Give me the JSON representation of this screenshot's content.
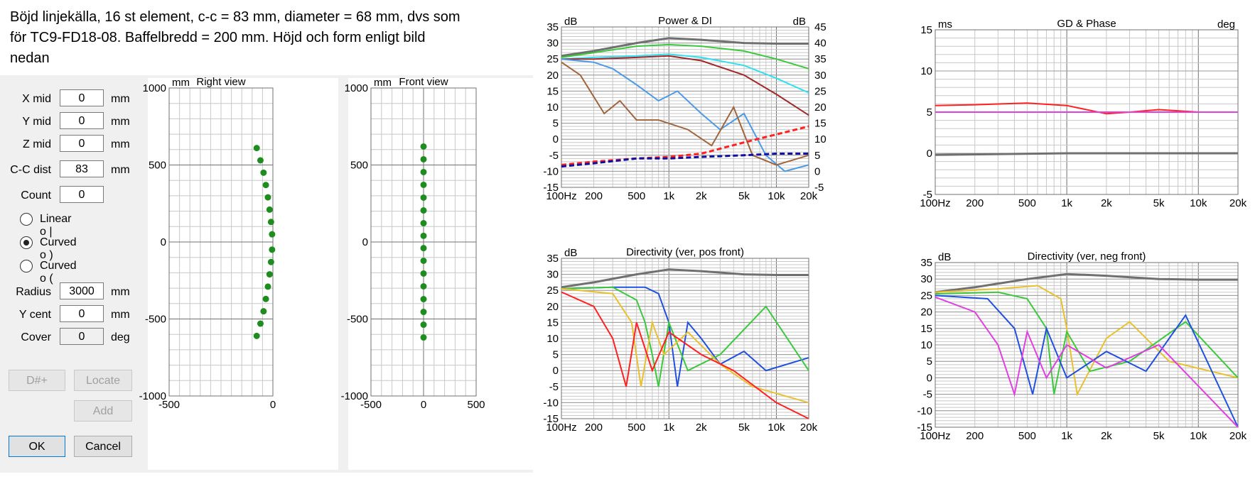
{
  "caption": {
    "line1": "Böjd linjekälla, 16 st element, c-c = 83 mm, diameter = 68 mm, dvs som",
    "line2": "för TC9-FD18-08. Baffelbredd = 200 mm.  Höjd och form enligt bild",
    "line3": "nedan"
  },
  "form": {
    "x_mid": {
      "label": "X mid",
      "value": "0",
      "unit": "mm"
    },
    "y_mid": {
      "label": "Y mid",
      "value": "0",
      "unit": "mm"
    },
    "z_mid": {
      "label": "Z mid",
      "value": "0",
      "unit": "mm"
    },
    "cc_dist": {
      "label": "C-C dist",
      "value": "83",
      "unit": "mm"
    },
    "count": {
      "label": "Count",
      "value": "0"
    },
    "radio_linear": {
      "label": "Linear   o  |",
      "selected": false
    },
    "radio_curved1": {
      "label": "Curved   o  )",
      "selected": true
    },
    "radio_curved2": {
      "label": "Curved   o  (",
      "selected": false
    },
    "radius": {
      "label": "Radius",
      "value": "3000",
      "unit": "mm"
    },
    "y_cent": {
      "label": "Y cent",
      "value": "0",
      "unit": "mm"
    },
    "cover": {
      "label": "Cover",
      "value": "0",
      "unit": "deg"
    },
    "btn_d": "D#+",
    "btn_locate": "Locate",
    "btn_add": "Add",
    "btn_ok": "OK",
    "btn_cancel": "Cancel"
  },
  "colors": {
    "grid": "#c8c8c8",
    "gridMajor": "#707070",
    "dot": "#1e8c1e",
    "gray": "#707070",
    "green": "#3cc83c",
    "cyan": "#30e0f0",
    "darkred": "#a02828",
    "lightblue": "#4a9ae8",
    "brown": "#a0643c",
    "red": "#ff2020",
    "navy": "#1010a0",
    "magenta": "#e040e0",
    "yellow": "#e8c030",
    "blue": "#2050e0"
  },
  "chart_data": [
    {
      "type": "scatter",
      "title": "Right view",
      "ylabel": "mm",
      "xlim": [
        -500,
        0
      ],
      "ylim": [
        -1000,
        1000
      ],
      "xticks": [
        "-500",
        "0"
      ],
      "yticks": [
        "1000",
        "500",
        "0",
        "-500",
        "-1000"
      ],
      "x": [
        -78,
        -60,
        -45,
        -34,
        -24,
        -16,
        -9,
        -4,
        -4,
        -9,
        -16,
        -24,
        -34,
        -45,
        -60,
        -78
      ],
      "y": [
        610,
        530,
        450,
        370,
        290,
        210,
        130,
        50,
        -50,
        -130,
        -210,
        -290,
        -370,
        -450,
        -530,
        -610
      ]
    },
    {
      "type": "scatter",
      "title": "Front view",
      "ylabel": "mm",
      "xlim": [
        -500,
        500
      ],
      "ylim": [
        -1000,
        1000
      ],
      "xticks": [
        "-500",
        "0",
        "500"
      ],
      "yticks": [
        "1000",
        "500",
        "0",
        "-500",
        "-1000"
      ],
      "x": [
        0,
        0,
        0,
        0,
        0,
        0,
        0,
        0,
        0,
        0,
        0,
        0,
        0,
        0,
        0,
        0
      ],
      "y": [
        620,
        537,
        454,
        371,
        288,
        205,
        122,
        40,
        -40,
        -122,
        -205,
        -288,
        -371,
        -454,
        -537,
        -620
      ]
    },
    {
      "type": "line",
      "title": "Power & DI",
      "ylabel": "dB",
      "y2label": "dB",
      "xscale": "log",
      "xlim": [
        100,
        20000
      ],
      "ylim": [
        -15,
        35
      ],
      "y2lim": [
        -5,
        45
      ],
      "xticks": [
        "100Hz",
        "200",
        "500",
        "1k",
        "2k",
        "5k",
        "10k",
        "20k"
      ],
      "yticks": [
        "35",
        "30",
        "25",
        "20",
        "15",
        "10",
        "5",
        "0",
        "-5",
        "-10",
        "-15"
      ],
      "y2ticks": [
        "45",
        "40",
        "35",
        "30",
        "25",
        "20",
        "15",
        "10",
        "5",
        "0",
        "-5"
      ],
      "series": [
        {
          "color": "gray",
          "x": [
            100,
            200,
            500,
            1000,
            2000,
            5000,
            10000,
            20000
          ],
          "y": [
            26,
            27.5,
            30,
            31.5,
            31,
            30,
            29.8,
            29.8
          ]
        },
        {
          "color": "green",
          "x": [
            100,
            200,
            500,
            1000,
            2000,
            5000,
            10000,
            20000
          ],
          "y": [
            25.5,
            27,
            29,
            29.5,
            29,
            27.5,
            25,
            22
          ]
        },
        {
          "color": "cyan",
          "x": [
            100,
            200,
            500,
            1000,
            2000,
            5000,
            10000,
            20000
          ],
          "y": [
            25,
            25.5,
            26,
            26.5,
            25.5,
            23,
            19,
            14.5
          ]
        },
        {
          "color": "darkred",
          "x": [
            100,
            200,
            500,
            1000,
            2000,
            5000,
            10000,
            20000
          ],
          "y": [
            25,
            25,
            25.5,
            26,
            24.5,
            20,
            14,
            7.5
          ]
        },
        {
          "color": "lightblue",
          "x": [
            100,
            200,
            300,
            500,
            800,
            1200,
            2000,
            3000,
            5000,
            8000,
            12000,
            20000
          ],
          "y": [
            25,
            24,
            22,
            17,
            12,
            15,
            8,
            3,
            8,
            -5,
            -10,
            -8
          ]
        },
        {
          "color": "brown",
          "x": [
            100,
            150,
            250,
            350,
            500,
            800,
            1500,
            2500,
            4000,
            6000,
            10000,
            20000
          ],
          "y": [
            24,
            20,
            8,
            12,
            6,
            6,
            3,
            -2,
            10,
            -5,
            -8,
            -5
          ]
        },
        {
          "color": "red",
          "dash": true,
          "x": [
            100,
            200,
            500,
            1000,
            2000,
            5000,
            10000,
            20000
          ],
          "y": [
            -8,
            -7,
            -6,
            -5.5,
            -4.5,
            -1,
            1.5,
            4
          ]
        },
        {
          "color": "navy",
          "dash": true,
          "x": [
            100,
            200,
            500,
            1000,
            2000,
            5000,
            10000,
            20000
          ],
          "y": [
            -8.5,
            -7.5,
            -6,
            -6,
            -5.5,
            -5,
            -4.5,
            -4.5
          ]
        }
      ]
    },
    {
      "type": "line",
      "title": "GD & Phase",
      "ylabel": "ms",
      "y2label": "deg",
      "xscale": "log",
      "xlim": [
        100,
        20000
      ],
      "ylim": [
        -5,
        15
      ],
      "xticks": [
        "100Hz",
        "200",
        "500",
        "1k",
        "2k",
        "5k",
        "10k",
        "20k"
      ],
      "yticks": [
        "15",
        "10",
        "5",
        "0",
        "-5"
      ],
      "series": [
        {
          "color": "red",
          "x": [
            100,
            200,
            500,
            1000,
            2000,
            3000,
            5000,
            10000,
            20000
          ],
          "y": [
            5.8,
            5.9,
            6.1,
            5.8,
            4.8,
            5.0,
            5.3,
            5.0,
            5.0
          ]
        },
        {
          "color": "magenta",
          "x": [
            100,
            20000
          ],
          "y": [
            5.0,
            5.0
          ]
        },
        {
          "color": "gray",
          "x": [
            100,
            1000,
            20000
          ],
          "y": [
            -0.2,
            0.0,
            0.0
          ]
        }
      ]
    },
    {
      "type": "line",
      "title": "Directivity (ver, pos front)",
      "ylabel": "dB",
      "xscale": "log",
      "xlim": [
        100,
        20000
      ],
      "ylim": [
        -15,
        35
      ],
      "xticks": [
        "100Hz",
        "200",
        "500",
        "1k",
        "2k",
        "5k",
        "10k",
        "20k"
      ],
      "yticks": [
        "35",
        "30",
        "25",
        "20",
        "15",
        "10",
        "5",
        "0",
        "-5",
        "-10",
        "-15"
      ],
      "series": [
        {
          "color": "gray",
          "x": [
            100,
            200,
            500,
            1000,
            2000,
            5000,
            10000,
            20000
          ],
          "y": [
            26,
            27.5,
            30,
            31.5,
            31,
            30,
            29.8,
            29.8
          ]
        },
        {
          "color": "blue",
          "x": [
            100,
            300,
            600,
            800,
            1000,
            1200,
            1500,
            2000,
            3000,
            5000,
            8000,
            20000
          ],
          "y": [
            25.5,
            26,
            26,
            24,
            15,
            -5,
            15,
            10,
            2,
            6,
            0,
            4
          ]
        },
        {
          "color": "green",
          "x": [
            100,
            300,
            500,
            600,
            700,
            800,
            1000,
            1500,
            3000,
            8000,
            20000
          ],
          "y": [
            25.5,
            26,
            22,
            15,
            5,
            -5,
            15,
            0,
            5,
            20,
            0
          ]
        },
        {
          "color": "yellow",
          "x": [
            100,
            300,
            450,
            550,
            700,
            900,
            1500,
            3000,
            6000,
            20000
          ],
          "y": [
            25.5,
            24,
            15,
            -5,
            15,
            5,
            12,
            2,
            -5,
            -10
          ]
        },
        {
          "color": "red",
          "x": [
            100,
            200,
            300,
            400,
            500,
            700,
            1000,
            2000,
            4000,
            10000,
            20000
          ],
          "y": [
            24.5,
            20,
            10,
            -5,
            15,
            0,
            12,
            5,
            0,
            -10,
            -15
          ]
        }
      ]
    },
    {
      "type": "line",
      "title": "Directivity (ver, neg front)",
      "ylabel": "dB",
      "xscale": "log",
      "xlim": [
        100,
        20000
      ],
      "ylim": [
        -15,
        35
      ],
      "xticks": [
        "100Hz",
        "200",
        "500",
        "1k",
        "2k",
        "5k",
        "10k",
        "20k"
      ],
      "yticks": [
        "35",
        "30",
        "25",
        "20",
        "15",
        "10",
        "5",
        "0",
        "-5",
        "-10",
        "-15"
      ],
      "series": [
        {
          "color": "gray",
          "x": [
            100,
            200,
            500,
            1000,
            2000,
            5000,
            10000,
            20000
          ],
          "y": [
            26,
            27.5,
            30,
            31.5,
            31,
            30,
            29.8,
            29.8
          ]
        },
        {
          "color": "yellow",
          "x": [
            100,
            300,
            600,
            900,
            1000,
            1200,
            2000,
            3000,
            6000,
            20000
          ],
          "y": [
            26,
            27,
            28,
            24,
            15,
            -5,
            12,
            17,
            5,
            0
          ]
        },
        {
          "color": "green",
          "x": [
            100,
            300,
            500,
            700,
            800,
            1000,
            1500,
            3000,
            8000,
            20000
          ],
          "y": [
            25.5,
            26,
            24,
            15,
            -5,
            14,
            2,
            5,
            17,
            0
          ]
        },
        {
          "color": "blue",
          "x": [
            100,
            250,
            400,
            550,
            700,
            1000,
            2000,
            4000,
            8000,
            20000
          ],
          "y": [
            25,
            24,
            15,
            -5,
            15,
            0,
            8,
            2,
            19,
            -15
          ]
        },
        {
          "color": "magenta",
          "x": [
            100,
            200,
            300,
            400,
            500,
            700,
            1000,
            2000,
            5000,
            20000
          ],
          "y": [
            24.5,
            20,
            10,
            -5,
            14,
            0,
            10,
            3,
            10,
            -15
          ]
        }
      ]
    }
  ]
}
